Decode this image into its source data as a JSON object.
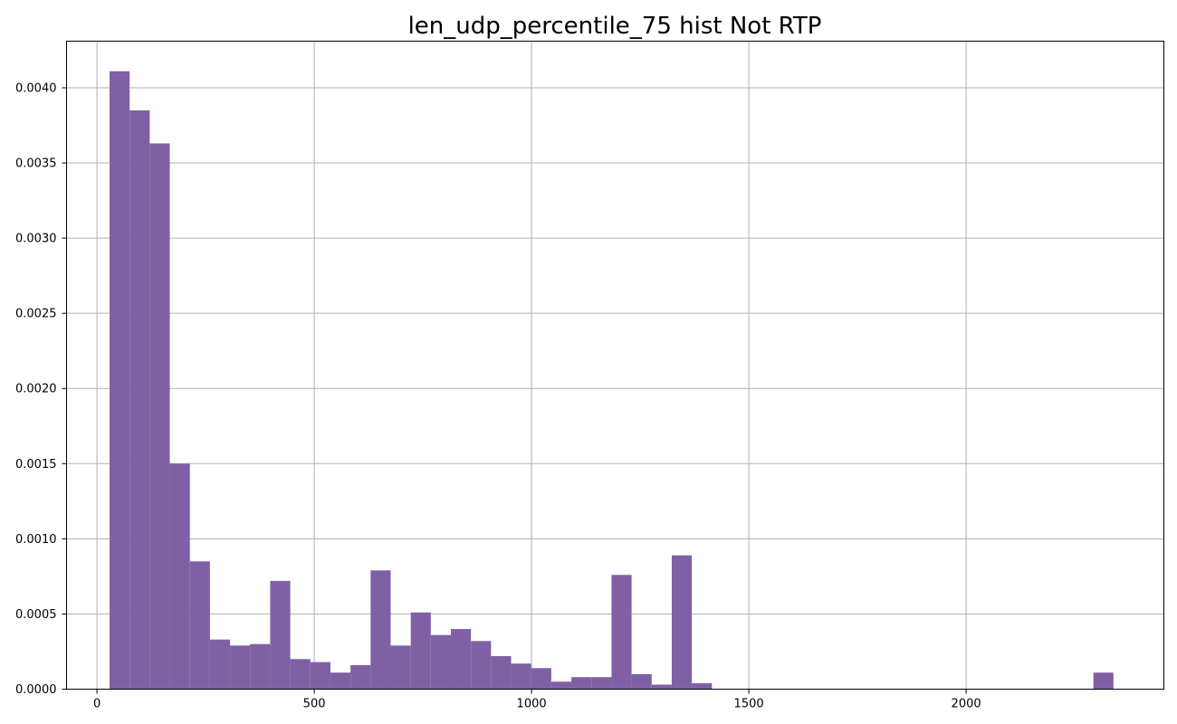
{
  "chart_data": {
    "type": "bar",
    "title": "len_udp_percentile_75 hist Not RTP",
    "xlabel": "",
    "ylabel": "",
    "xlim": [
      -70,
      2455
    ],
    "ylim": [
      0,
      0.00431
    ],
    "grid": true,
    "bar_color": "#8060a4",
    "bin_start": 29,
    "bin_width": 46.2,
    "values": [
      0.00411,
      0.00385,
      0.00363,
      0.0015,
      0.00085,
      0.00033,
      0.00029,
      0.0003,
      0.00072,
      0.0002,
      0.00018,
      0.00011,
      0.00016,
      0.00079,
      0.00029,
      0.00051,
      0.00036,
      0.0004,
      0.00032,
      0.00022,
      0.00017,
      0.00014,
      5e-05,
      8e-05,
      8e-05,
      0.00076,
      0.0001,
      3e-05,
      0.00089,
      4e-05,
      0,
      0,
      0,
      0,
      0,
      0,
      0,
      0,
      0,
      0,
      0,
      0,
      0,
      0,
      0,
      0,
      0,
      0,
      0,
      0.00011
    ],
    "x_ticks": [
      0,
      500,
      1000,
      1500,
      2000
    ],
    "x_tick_labels": [
      "0",
      "500",
      "1000",
      "1500",
      "2000"
    ],
    "y_ticks": [
      0,
      0.0005,
      0.001,
      0.0015,
      0.002,
      0.0025,
      0.003,
      0.0035,
      0.004
    ],
    "y_tick_labels": [
      "0.0000",
      "0.0005",
      "0.0010",
      "0.0015",
      "0.0020",
      "0.0025",
      "0.0030",
      "0.0035",
      "0.0040"
    ]
  }
}
